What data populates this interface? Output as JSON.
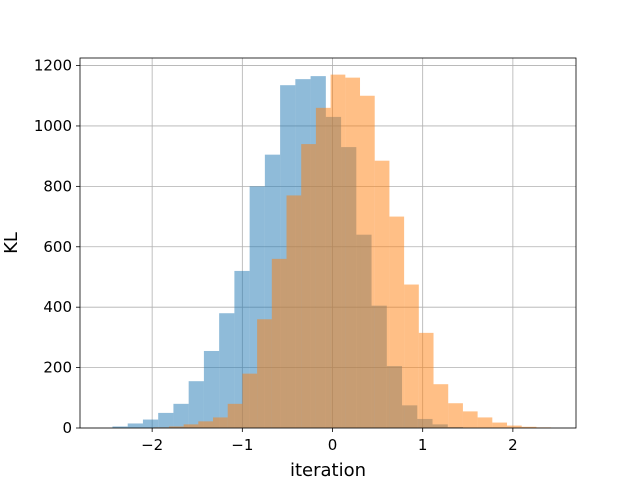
{
  "chart_data": {
    "type": "bar",
    "subtype": "overlapping-histogram",
    "title": "",
    "xlabel": "iteration",
    "ylabel": "KL",
    "xlim": [
      -2.8,
      2.7
    ],
    "ylim": [
      0,
      1225
    ],
    "xticks": [
      -2,
      -1,
      0,
      1,
      2
    ],
    "xtick_labels": [
      "−2",
      "−1",
      "0",
      "1",
      "2"
    ],
    "yticks": [
      0,
      200,
      400,
      600,
      800,
      1000,
      1200
    ],
    "ytick_labels": [
      "0",
      "200",
      "400",
      "600",
      "800",
      "1000",
      "1200"
    ],
    "grid": true,
    "legend": "none",
    "series": [
      {
        "color": "#1f77b4",
        "opacity": 0.5,
        "bin_width": 0.169,
        "bin_starts": [
          -2.44,
          -2.271,
          -2.102,
          -1.933,
          -1.764,
          -1.595,
          -1.426,
          -1.257,
          -1.088,
          -0.919,
          -0.75,
          -0.581,
          -0.412,
          -0.243,
          -0.074,
          0.095,
          0.264,
          0.433,
          0.602,
          0.771,
          0.94,
          1.109,
          1.278
        ],
        "values": [
          5,
          15,
          28,
          50,
          80,
          155,
          255,
          380,
          520,
          800,
          905,
          1135,
          1155,
          1165,
          1030,
          930,
          640,
          405,
          205,
          75,
          30,
          12,
          3
        ]
      },
      {
        "color": "#ff7f0e",
        "opacity": 0.5,
        "bin_width": 0.163,
        "bin_starts": [
          -1.977,
          -1.814,
          -1.651,
          -1.488,
          -1.325,
          -1.162,
          -0.999,
          -0.836,
          -0.673,
          -0.51,
          -0.347,
          -0.184,
          -0.021,
          0.142,
          0.305,
          0.468,
          0.631,
          0.794,
          0.957,
          1.12,
          1.283,
          1.446,
          1.609,
          1.772,
          1.935,
          2.098,
          2.261
        ],
        "values": [
          2,
          5,
          12,
          22,
          35,
          80,
          180,
          360,
          560,
          770,
          940,
          1060,
          1170,
          1160,
          1100,
          885,
          700,
          475,
          315,
          145,
          82,
          55,
          35,
          18,
          8,
          4,
          2
        ]
      }
    ]
  }
}
